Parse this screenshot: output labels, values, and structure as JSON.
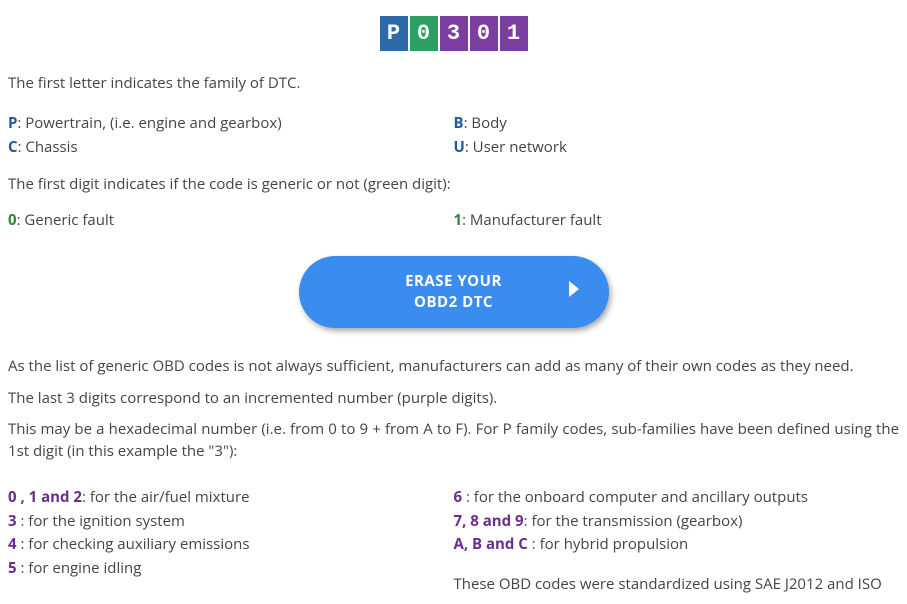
{
  "code_badge": {
    "digits": [
      "P",
      "0",
      "3",
      "0",
      "1"
    ],
    "colors": [
      "#2e6aa8",
      "#2f9e63",
      "#7a3fa0",
      "#7a3fa0",
      "#7a3fa0"
    ]
  },
  "intro": "The first letter indicates the family of DTC.",
  "family_keys": {
    "left": [
      {
        "k": "P",
        "v": ": Powertrain, (i.e. engine and gearbox)"
      },
      {
        "k": "C",
        "v": ": Chassis"
      }
    ],
    "right": [
      {
        "k": "B",
        "v": ": Body"
      },
      {
        "k": "U",
        "v": ": User network"
      }
    ]
  },
  "first_digit_intro": "The first digit indicates if the code is generic or not (green digit):",
  "first_digit_keys": {
    "left": {
      "k": "0",
      "v": ": Generic fault"
    },
    "right": {
      "k": "1",
      "v": ": Manufacturer fault"
    }
  },
  "cta": {
    "line1": "ERASE YOUR",
    "line2": "OBD2 DTC"
  },
  "paras": [
    "As the list of generic OBD codes is not always sufficient, manufacturers can add as many of their own codes as they need.",
    "The last 3 digits correspond to an incremented number (purple digits).",
    "This may be a hexadecimal number (i.e. from 0 to 9 + from A to F). For P family codes, sub-families have been defined using the 1st digit (in this example the \"3\"):"
  ],
  "subfam_left": [
    {
      "k": "0 , 1 and 2",
      "v": ": for the air/fuel mixture"
    },
    {
      "k": "3",
      "v": " : for the ignition system"
    },
    {
      "k": "4",
      "v": " : for checking auxiliary emissions"
    },
    {
      "k": "5",
      "v": " : for engine idling"
    }
  ],
  "subfam_right": [
    {
      "k": "6",
      "v": " : for the onboard computer and ancillary outputs"
    },
    {
      "k": "7, 8 and 9",
      "v": ": for the transmission (gearbox)"
    },
    {
      "k": "A, B and C",
      "v": " : for hybrid propulsion"
    }
  ],
  "footer": "These OBD codes were standardized using SAE J2012 and ISO"
}
